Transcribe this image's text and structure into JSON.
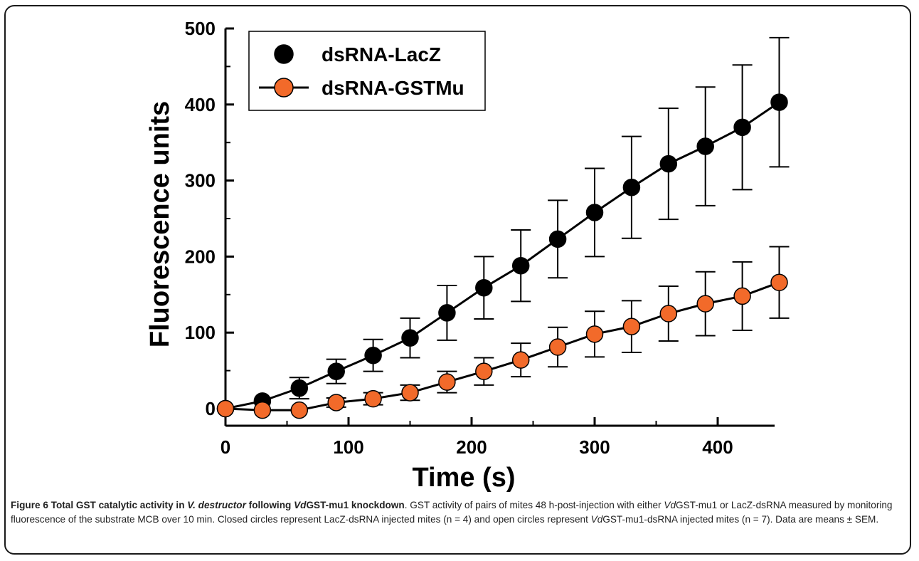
{
  "chart_data": {
    "type": "line",
    "xlabel": "Time (s)",
    "ylabel": "Fluorescence units",
    "xlim": [
      0,
      450
    ],
    "ylim": [
      -25,
      500
    ],
    "xticks": [
      "0",
      "100",
      "200",
      "300",
      "400"
    ],
    "yticks": [
      "0",
      "100",
      "200",
      "300",
      "400",
      "500"
    ],
    "legend_position": "top-left",
    "grid": false,
    "x": [
      0,
      30,
      60,
      90,
      120,
      150,
      180,
      210,
      240,
      270,
      300,
      330,
      360,
      390,
      420,
      450
    ],
    "series": [
      {
        "name": "dsRNA-LacZ",
        "color": "#000000",
        "values": [
          0,
          10,
          27,
          49,
          70,
          93,
          126,
          159,
          188,
          223,
          258,
          291,
          322,
          345,
          370,
          403
        ],
        "err_upper": [
          0,
          0,
          14,
          16,
          21,
          26,
          36,
          41,
          47,
          51,
          58,
          67,
          73,
          78,
          82,
          85
        ],
        "err_lower": [
          0,
          0,
          14,
          16,
          21,
          26,
          36,
          41,
          47,
          51,
          58,
          67,
          73,
          78,
          82,
          85
        ]
      },
      {
        "name": "dsRNA-GSTMu",
        "color": "#f26a2a",
        "values": [
          0,
          -2,
          -2,
          8,
          13,
          21,
          35,
          49,
          64,
          81,
          98,
          108,
          125,
          138,
          148,
          166
        ],
        "err_upper": [
          0,
          0,
          0,
          6,
          8,
          10,
          14,
          18,
          22,
          26,
          30,
          34,
          36,
          42,
          45,
          47
        ],
        "err_lower": [
          0,
          0,
          0,
          6,
          8,
          10,
          14,
          18,
          22,
          26,
          30,
          34,
          36,
          42,
          45,
          47
        ]
      }
    ]
  },
  "caption": {
    "parts": [
      {
        "text": "Figure 6 Total GST catalytic activity in ",
        "style": "b"
      },
      {
        "text": "V. destructor",
        "style": "bi"
      },
      {
        "text": " following ",
        "style": "b"
      },
      {
        "text": "Vd",
        "style": "bi"
      },
      {
        "text": "GST-mu1 knockdown",
        "style": "b"
      },
      {
        "text": ". GST activity of pairs of mites 48 h-post-injection with either ",
        "style": "n"
      },
      {
        "text": "Vd",
        "style": "i"
      },
      {
        "text": "GST-mu1 or LacZ-dsRNA measured by monitoring fluorescence of the substrate MCB over 10 min. Closed circles represent LacZ-dsRNA injected mites (n = 4) and open circles represent ",
        "style": "n"
      },
      {
        "text": "Vd",
        "style": "i"
      },
      {
        "text": "GST-mu1-dsRNA injected mites (n = 7). Data are means ± SEM.",
        "style": "n"
      }
    ]
  }
}
